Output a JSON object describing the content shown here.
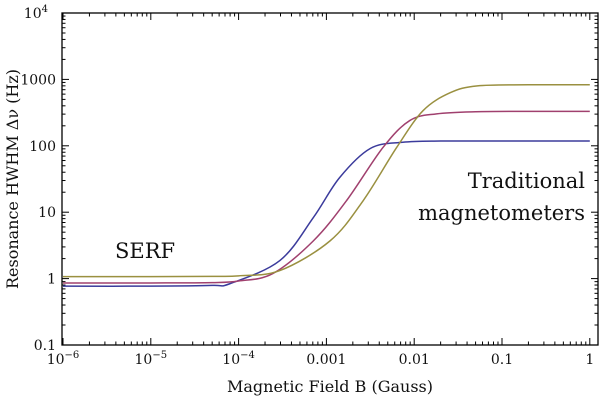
{
  "chart_data": {
    "type": "line",
    "xlabel": "Magnetic Field B (Gauss)",
    "ylabel": "Resonance HWHM Δν (Hz)",
    "x_scale": "log",
    "y_scale": "log",
    "xlim": [
      1e-06,
      1
    ],
    "ylim": [
      0.1,
      10000
    ],
    "x_ticks": [
      {
        "value": 1e-06,
        "label": "10",
        "exp": "−6"
      },
      {
        "value": 1e-05,
        "label": "10",
        "exp": "−5"
      },
      {
        "value": 0.0001,
        "label": "10",
        "exp": "−4"
      },
      {
        "value": 0.001,
        "label": "0.001",
        "exp": ""
      },
      {
        "value": 0.01,
        "label": "0.01",
        "exp": ""
      },
      {
        "value": 0.1,
        "label": "0.1",
        "exp": ""
      },
      {
        "value": 1,
        "label": "1",
        "exp": ""
      }
    ],
    "y_ticks": [
      {
        "value": 0.1,
        "label": "0.1",
        "exp": ""
      },
      {
        "value": 1,
        "label": "1",
        "exp": ""
      },
      {
        "value": 10,
        "label": "10",
        "exp": ""
      },
      {
        "value": 100,
        "label": "100",
        "exp": ""
      },
      {
        "value": 1000,
        "label": "1000",
        "exp": ""
      },
      {
        "value": 10000,
        "label": "10",
        "exp": "4"
      }
    ],
    "grid": false,
    "series": [
      {
        "color": "#3b3b9c",
        "x": [
          1e-06,
          1e-05,
          5e-05,
          8e-05,
          0.000295,
          0.00071,
          0.00141,
          0.00316,
          0.0074,
          0.02,
          0.1,
          1
        ],
        "y": [
          0.77,
          0.77,
          0.79,
          0.84,
          1.87,
          8.3,
          33,
          91,
          113,
          118,
          118,
          118
        ]
      },
      {
        "color": "#a0406e",
        "x": [
          1e-06,
          1e-05,
          5e-05,
          0.0001,
          0.000245,
          0.00071,
          0.0017,
          0.0044,
          0.0089,
          0.018,
          0.05,
          0.2,
          1
        ],
        "y": [
          0.86,
          0.86,
          0.87,
          0.92,
          1.19,
          3.7,
          15,
          94,
          240,
          303,
          326,
          330,
          330
        ]
      },
      {
        "color": "#9a9040",
        "x": [
          1e-06,
          1e-05,
          5e-05,
          0.0001,
          0.000295,
          0.0011,
          0.00263,
          0.0063,
          0.0126,
          0.0257,
          0.0525,
          0.2,
          1
        ],
        "y": [
          1.07,
          1.07,
          1.08,
          1.1,
          1.32,
          3.7,
          15,
          94,
          338,
          630,
          800,
          830,
          830
        ]
      }
    ],
    "annotations": [
      {
        "text": "SERF"
      },
      {
        "text": "Traditional"
      },
      {
        "text": "magnetometers"
      }
    ]
  }
}
